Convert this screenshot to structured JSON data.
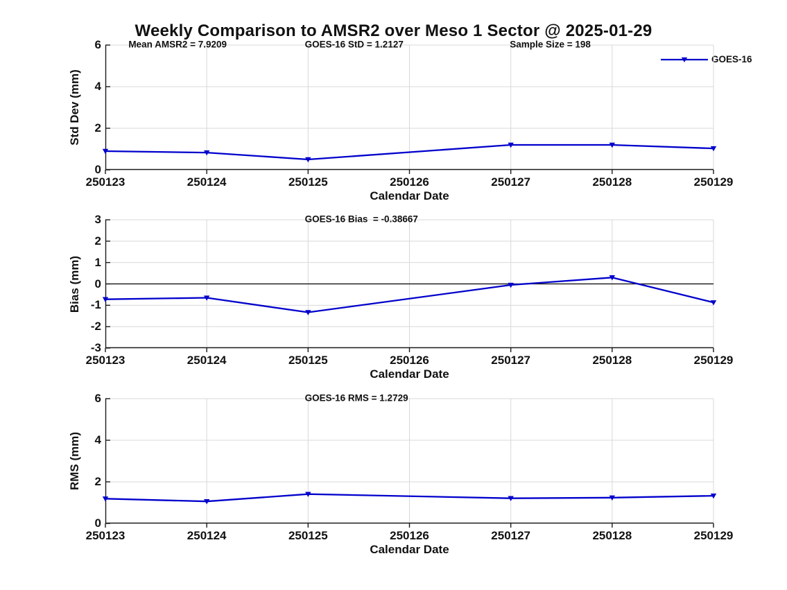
{
  "title": "Weekly Comparison to AMSR2 over Meso 1 Sector @ 2025-01-29",
  "legend": {
    "label": "GOES-16"
  },
  "colors": {
    "series": "#0000cc",
    "grid": "#d8d8d8",
    "axis": "#1a1a1a",
    "zero_line": "#000000"
  },
  "chart_data": [
    {
      "type": "line",
      "name": "std-dev",
      "title": "",
      "xlabel": "Calendar Date",
      "ylabel": "Std Dev (mm)",
      "ylim": [
        0,
        6
      ],
      "yticks": [
        0,
        2,
        4,
        6
      ],
      "grid": true,
      "zero_line": false,
      "legend_position": "top-right",
      "categories": [
        "250123",
        "250124",
        "250125",
        "250126",
        "250127",
        "250128",
        "250129"
      ],
      "series": [
        {
          "name": "GOES-16",
          "values": [
            0.9,
            0.83,
            0.5,
            null,
            1.2,
            1.2,
            1.03
          ]
        }
      ],
      "annotations": [
        {
          "text": "Mean AMSR2 = 7.9209",
          "xfrac": 0.038
        },
        {
          "text": "GOES-16 StD = 1.2127",
          "xfrac": 0.328
        },
        {
          "text": "Sample Size = 198",
          "xfrac": 0.665
        }
      ]
    },
    {
      "type": "line",
      "name": "bias",
      "title": "",
      "xlabel": "Calendar Date",
      "ylabel": "Bias (mm)",
      "ylim": [
        -3,
        3
      ],
      "yticks": [
        -3,
        -2,
        -1,
        0,
        1,
        2,
        3
      ],
      "grid": true,
      "zero_line": true,
      "categories": [
        "250123",
        "250124",
        "250125",
        "250126",
        "250127",
        "250128",
        "250129"
      ],
      "series": [
        {
          "name": "GOES-16",
          "values": [
            -0.72,
            -0.65,
            -1.33,
            null,
            -0.05,
            0.3,
            -0.87
          ]
        }
      ],
      "annotations": [
        {
          "text": "GOES-16 Bias  = -0.38667",
          "xfrac": 0.328
        }
      ]
    },
    {
      "type": "line",
      "name": "rms",
      "title": "",
      "xlabel": "Calendar Date",
      "ylabel": "RMS (mm)",
      "ylim": [
        0,
        6
      ],
      "yticks": [
        0,
        2,
        4,
        6
      ],
      "grid": true,
      "zero_line": false,
      "categories": [
        "250123",
        "250124",
        "250125",
        "250126",
        "250127",
        "250128",
        "250129"
      ],
      "series": [
        {
          "name": "GOES-16",
          "values": [
            1.19,
            1.06,
            1.41,
            null,
            1.21,
            1.24,
            1.33
          ]
        }
      ],
      "annotations": [
        {
          "text": "GOES-16 RMS = 1.2729",
          "xfrac": 0.328
        }
      ]
    }
  ]
}
